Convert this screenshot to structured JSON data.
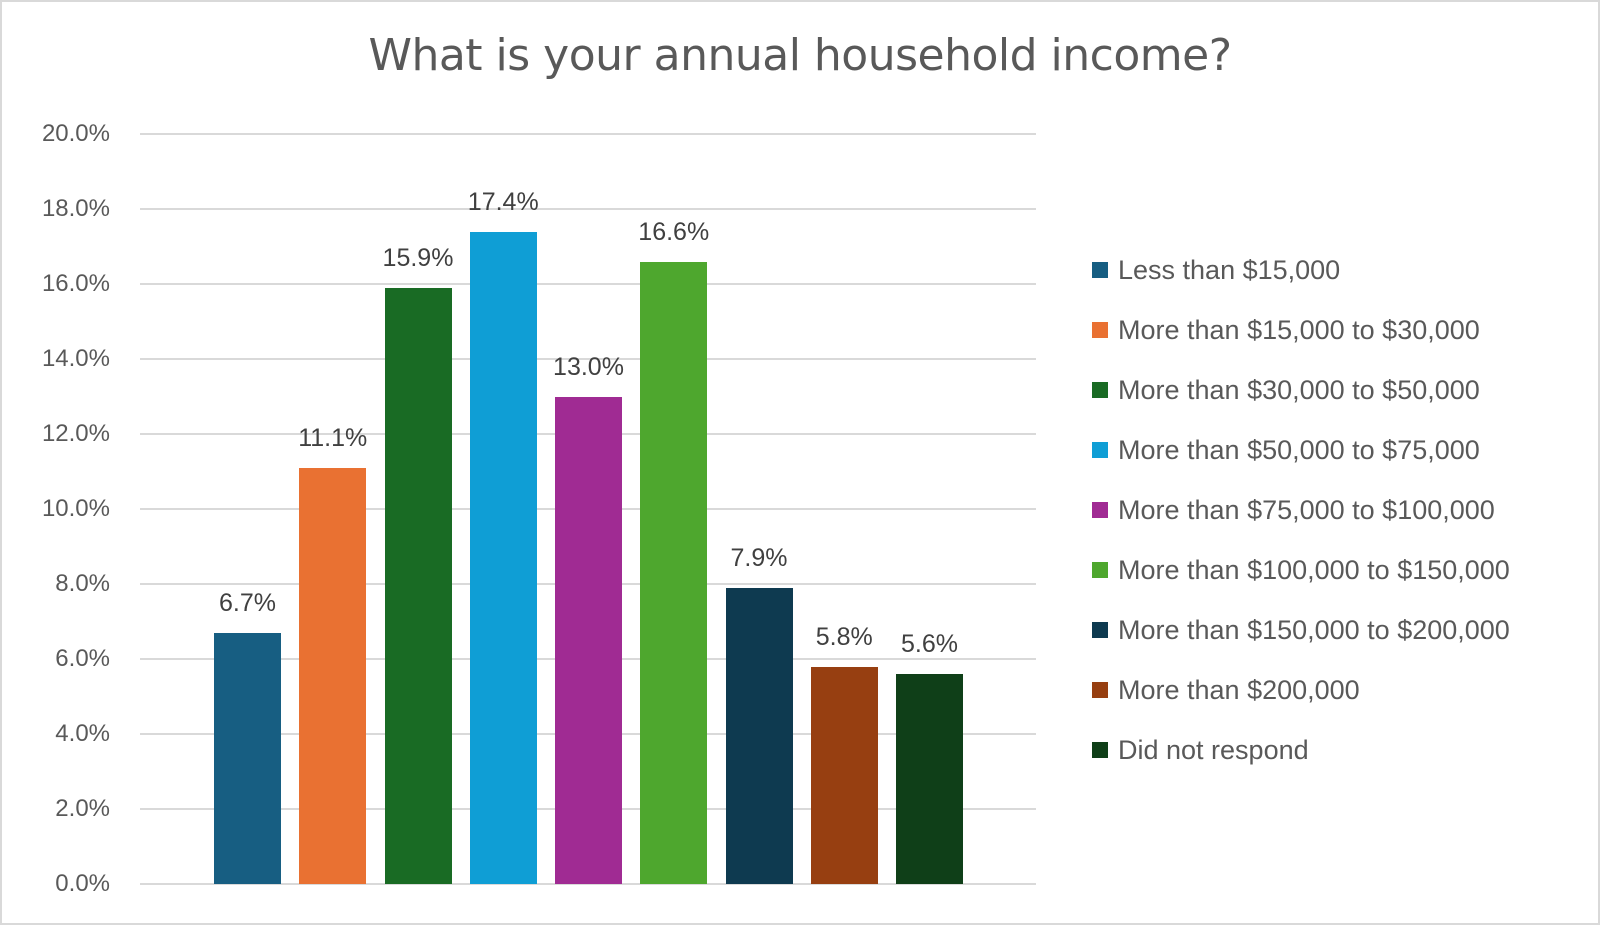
{
  "chart_data": {
    "type": "bar",
    "title": "What is your annual household income?",
    "xlabel": "",
    "ylabel": "",
    "ylim": [
      0,
      20
    ],
    "yticks": [
      "0.0%",
      "2.0%",
      "4.0%",
      "6.0%",
      "8.0%",
      "10.0%",
      "12.0%",
      "14.0%",
      "16.0%",
      "18.0%",
      "20.0%"
    ],
    "grid": true,
    "legend_position": "right",
    "categories": [
      "Less than $15,000",
      "More than $15,000 to $30,000",
      "More than $30,000 to $50,000",
      "More than $50,000 to $75,000",
      "More than $75,000 to $100,000",
      "More than $100,000 to $150,000",
      "More than $150,000 to $200,000",
      "More than $200,000",
      "Did not respond"
    ],
    "values": [
      6.7,
      11.1,
      15.9,
      17.4,
      13.0,
      16.6,
      7.9,
      5.8,
      5.6
    ],
    "labels": [
      "6.7%",
      "11.1%",
      "15.9%",
      "17.4%",
      "13.0%",
      "16.6%",
      "7.9%",
      "5.8%",
      "5.6%"
    ],
    "colors": [
      "#175e82",
      "#e97132",
      "#196b24",
      "#0f9ed5",
      "#a02b93",
      "#4ea72e",
      "#0e3a50",
      "#973f11",
      "#0f3f18"
    ]
  }
}
